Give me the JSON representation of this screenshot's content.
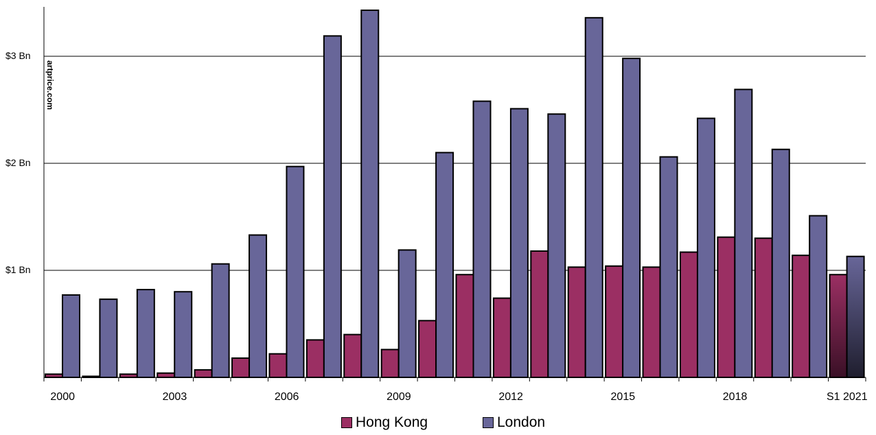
{
  "watermark": "artprice.com",
  "colors": {
    "hongkong": "#9b2f63",
    "london": "#686699",
    "grid": "#888888"
  },
  "chart_data": {
    "type": "bar",
    "title": "",
    "xlabel": "",
    "ylabel": "",
    "ylim": [
      0,
      3.45
    ],
    "yticks": [
      {
        "value": 1,
        "label": "$1 Bn"
      },
      {
        "value": 2,
        "label": "$2 Bn"
      },
      {
        "value": 3,
        "label": "$3 Bn"
      }
    ],
    "categories": [
      "2000",
      "2001",
      "2002",
      "2003",
      "2004",
      "2005",
      "2006",
      "2007",
      "2008",
      "2009",
      "2010",
      "2011",
      "2012",
      "2013",
      "2014",
      "2015",
      "2016",
      "2017",
      "2018",
      "2019",
      "2020",
      "S1 2021"
    ],
    "xtick_labels": [
      {
        "index": 0,
        "label": "2000"
      },
      {
        "index": 3,
        "label": "2003"
      },
      {
        "index": 6,
        "label": "2006"
      },
      {
        "index": 9,
        "label": "2009"
      },
      {
        "index": 12,
        "label": "2012"
      },
      {
        "index": 15,
        "label": "2015"
      },
      {
        "index": 18,
        "label": "2018"
      },
      {
        "index": 21,
        "label": "S1 2021"
      }
    ],
    "legend": "bottom",
    "series": [
      {
        "name": "Hong Kong",
        "values": [
          0.03,
          0.01,
          0.03,
          0.04,
          0.07,
          0.18,
          0.22,
          0.35,
          0.4,
          0.26,
          0.53,
          0.96,
          0.74,
          1.18,
          1.03,
          1.04,
          1.03,
          1.17,
          1.31,
          1.3,
          1.14,
          0.96
        ]
      },
      {
        "name": "London",
        "values": [
          0.77,
          0.73,
          0.82,
          0.8,
          1.06,
          1.33,
          1.97,
          3.19,
          3.43,
          1.19,
          2.1,
          2.58,
          2.51,
          2.46,
          3.36,
          2.98,
          2.06,
          2.42,
          2.69,
          2.13,
          1.51,
          1.13
        ]
      }
    ]
  }
}
